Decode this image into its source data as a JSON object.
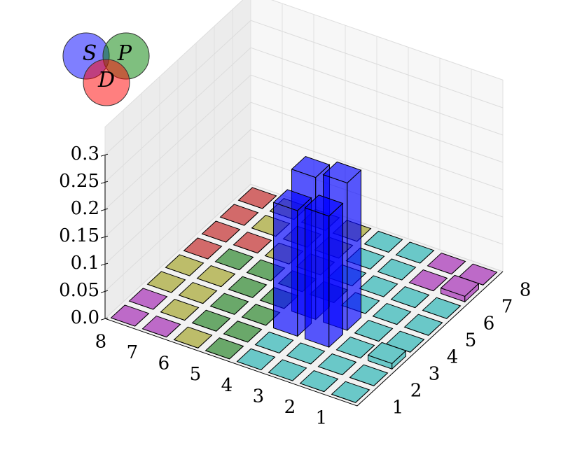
{
  "chart_data": {
    "type": "bar3d",
    "x_categories": [
      "1",
      "2",
      "3",
      "4",
      "5",
      "6",
      "7",
      "8"
    ],
    "y_categories": [
      "1",
      "2",
      "3",
      "4",
      "5",
      "6",
      "7",
      "8"
    ],
    "values": [
      [
        0,
        0,
        0.01,
        0,
        0,
        0,
        0.01,
        0
      ],
      [
        0,
        0,
        0,
        0,
        0,
        0,
        0,
        0
      ],
      [
        0,
        0,
        0.24,
        0.27,
        0,
        0,
        0,
        0
      ],
      [
        0,
        0,
        0.23,
        0.26,
        0,
        0,
        0,
        0
      ],
      [
        0,
        0,
        0,
        0,
        0,
        0,
        0,
        0
      ],
      [
        0,
        0,
        0,
        0,
        0,
        0,
        0,
        0
      ],
      [
        0,
        0,
        0,
        0,
        0,
        0,
        0,
        0
      ],
      [
        0,
        0,
        0,
        0,
        0,
        0,
        0,
        0
      ]
    ],
    "colors": [
      [
        "#20b0b0",
        "#20b0b0",
        "#20b0b0",
        "#20b0b0",
        "#20b0b0",
        "#20b0b0",
        "#a020b0",
        "#a020b0"
      ],
      [
        "#20b0b0",
        "#20b0b0",
        "#20b0b0",
        "#20b0b0",
        "#20b0b0",
        "#20b0b0",
        "#a020b0",
        "#a020b0"
      ],
      [
        "#20b0b0",
        "#20b0b0",
        "#0000ff",
        "#0000ff",
        "#20b0b0",
        "#20b0b0",
        "#20b0b0",
        "#20b0b0"
      ],
      [
        "#20b0b0",
        "#20b0b0",
        "#0000ff",
        "#0000ff",
        "#208020",
        "#20b0b0",
        "#20b0b0",
        "#20b0b0"
      ],
      [
        "#208020",
        "#208020",
        "#208020",
        "#208020",
        "#208020",
        "#a0a020",
        "#a0a020",
        "#a0a020"
      ],
      [
        "#a0a020",
        "#208020",
        "#208020",
        "#208020",
        "#208020",
        "#a0a020",
        "#a0a020",
        "#a0a020"
      ],
      [
        "#a020b0",
        "#a0a020",
        "#a0a020",
        "#a0a020",
        "#208020",
        "#c02020",
        "#a0a020",
        "#a0a020"
      ],
      [
        "#a020b0",
        "#a020b0",
        "#a0a020",
        "#a0a020",
        "#c02020",
        "#c02020",
        "#c02020",
        "#c02020"
      ]
    ],
    "zlim": [
      0,
      0.3
    ],
    "zticks": [
      {
        "value": 0,
        "label": "0.0"
      },
      0.05,
      0.1,
      0.15,
      0.2,
      0.25,
      0.3
    ],
    "grid": true,
    "legend": [
      {
        "name": "S",
        "color": "#0000ff"
      },
      {
        "name": "P",
        "color": "#008000"
      },
      {
        "name": "D",
        "color": "#ff0000"
      }
    ]
  }
}
